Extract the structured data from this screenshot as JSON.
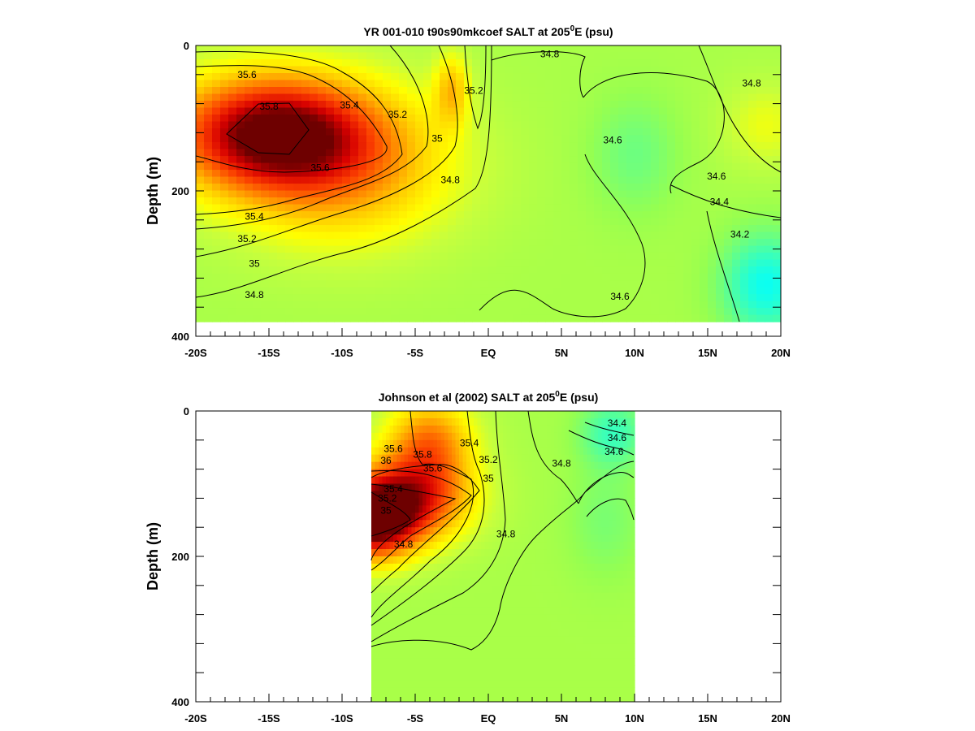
{
  "chart_data": [
    {
      "type": "heatmap",
      "title_main": "YR 001-010 t90s90mkcoef SALT at 205",
      "title_sup": "0",
      "title_end": "E (psu)",
      "ylabel": "Depth (m)",
      "xlim": [
        -20,
        20
      ],
      "ylim": [
        0,
        400
      ],
      "y_inverted": true,
      "data_depth_max": 380,
      "data_lon_range": [
        -20,
        20
      ],
      "x_ticks": [
        -20,
        -15,
        -10,
        -5,
        0,
        5,
        10,
        15,
        20
      ],
      "x_tick_labels": [
        "-20S",
        "-15S",
        "-10S",
        "-5S",
        "EQ",
        "5N",
        "10N",
        "15N",
        "20N"
      ],
      "y_ticks": [
        0,
        200,
        400
      ],
      "y_tick_labels": [
        "0",
        "200",
        "400"
      ],
      "colorscale": {
        "min": 34.1,
        "max": 36.0
      },
      "salinity_features": [
        {
          "lon": -15,
          "depth": 120,
          "value": 35.9,
          "lon_width": 7,
          "depth_width": 80
        },
        {
          "lon": -10,
          "depth": 170,
          "value": 35.3,
          "lon_width": 8,
          "depth_width": 110
        },
        {
          "lon": -2.5,
          "depth": 60,
          "value": 35.2,
          "lon_width": 1.2,
          "depth_width": 50
        },
        {
          "lon": 19,
          "depth": 110,
          "value": 35.0,
          "lon_width": 3,
          "depth_width": 60
        },
        {
          "lon": 19,
          "depth": 330,
          "value": 34.15,
          "lon_width": 3,
          "depth_width": 70
        },
        {
          "lon": 10,
          "depth": 150,
          "value": 34.55,
          "lon_width": 3,
          "depth_width": 80
        }
      ],
      "contour_labels": [
        {
          "text": "35.6",
          "lon": -16.5,
          "depth": 40
        },
        {
          "text": "35.8",
          "lon": -15,
          "depth": 84
        },
        {
          "text": "35.4",
          "lon": -9.5,
          "depth": 82
        },
        {
          "text": "35.2",
          "lon": -6.2,
          "depth": 95
        },
        {
          "text": "35",
          "lon": -3.5,
          "depth": 128
        },
        {
          "text": "35.2",
          "lon": -1,
          "depth": 62
        },
        {
          "text": "34.8",
          "lon": 4.2,
          "depth": 12
        },
        {
          "text": "34.6",
          "lon": 8.5,
          "depth": 130
        },
        {
          "text": "34.8",
          "lon": 18,
          "depth": 52
        },
        {
          "text": "35.6",
          "lon": -11.5,
          "depth": 168
        },
        {
          "text": "34.8",
          "lon": -2.6,
          "depth": 185
        },
        {
          "text": "34.6",
          "lon": 15.6,
          "depth": 180
        },
        {
          "text": "34.4",
          "lon": 15.8,
          "depth": 215
        },
        {
          "text": "35.4",
          "lon": -16,
          "depth": 235
        },
        {
          "text": "35.2",
          "lon": -16.5,
          "depth": 266
        },
        {
          "text": "34.2",
          "lon": 17.2,
          "depth": 260
        },
        {
          "text": "35",
          "lon": -16,
          "depth": 300
        },
        {
          "text": "34.6",
          "lon": 9,
          "depth": 345
        },
        {
          "text": "34.8",
          "lon": -16,
          "depth": 343
        }
      ]
    },
    {
      "type": "heatmap",
      "title_main": "Johnson et al (2002) SALT at 205",
      "title_sup": "0",
      "title_end": "E (psu)",
      "ylabel": "Depth (m)",
      "xlim": [
        -20,
        20
      ],
      "ylim": [
        0,
        400
      ],
      "y_inverted": true,
      "data_depth_max": 400,
      "data_lon_range": [
        -8,
        10
      ],
      "x_ticks": [
        -20,
        -15,
        -10,
        -5,
        0,
        5,
        10,
        15,
        20
      ],
      "x_tick_labels": [
        "-20S",
        "-15S",
        "-10S",
        "-5S",
        "EQ",
        "5N",
        "10N",
        "15N",
        "20N"
      ],
      "y_ticks": [
        0,
        200,
        400
      ],
      "y_tick_labels": [
        "0",
        "200",
        "400"
      ],
      "colorscale": {
        "min": 34.1,
        "max": 36.0
      },
      "salinity_features": [
        {
          "lon": -8,
          "depth": 150,
          "value": 36.0,
          "lon_width": 3,
          "depth_width": 55
        },
        {
          "lon": -5,
          "depth": 120,
          "value": 35.6,
          "lon_width": 4,
          "depth_width": 60
        },
        {
          "lon": -4,
          "depth": 40,
          "value": 35.4,
          "lon_width": 3,
          "depth_width": 60
        },
        {
          "lon": 8.5,
          "depth": 30,
          "value": 34.35,
          "lon_width": 2.2,
          "depth_width": 45
        },
        {
          "lon": 8,
          "depth": 150,
          "value": 34.6,
          "lon_width": 2.5,
          "depth_width": 80
        }
      ],
      "contour_labels": [
        {
          "text": "34.4",
          "lon": 8.8,
          "depth": 17
        },
        {
          "text": "34.6",
          "lon": 8.8,
          "depth": 37
        },
        {
          "text": "35.4",
          "lon": -1.3,
          "depth": 44
        },
        {
          "text": "35.6",
          "lon": -6.5,
          "depth": 52
        },
        {
          "text": "35.8",
          "lon": -4.5,
          "depth": 60
        },
        {
          "text": "34.6",
          "lon": 8.6,
          "depth": 56
        },
        {
          "text": "35.2",
          "lon": 0,
          "depth": 67
        },
        {
          "text": "36",
          "lon": -7,
          "depth": 68
        },
        {
          "text": "34.8",
          "lon": 5,
          "depth": 72
        },
        {
          "text": "35.6",
          "lon": -3.8,
          "depth": 79
        },
        {
          "text": "35",
          "lon": 0,
          "depth": 93
        },
        {
          "text": "35.4",
          "lon": -6.5,
          "depth": 107
        },
        {
          "text": "35.2",
          "lon": -6.9,
          "depth": 120
        },
        {
          "text": "35",
          "lon": -7,
          "depth": 137
        },
        {
          "text": "34.8",
          "lon": 1.2,
          "depth": 169
        },
        {
          "text": "34.8",
          "lon": -5.8,
          "depth": 183
        }
      ]
    }
  ]
}
